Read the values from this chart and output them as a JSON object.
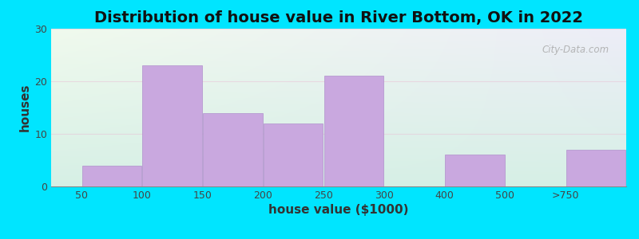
{
  "title": "Distribution of house value in River Bottom, OK in 2022",
  "xlabel": "house value ($1000)",
  "ylabel": "houses",
  "categories": [
    "50",
    "100",
    "150",
    "200",
    "250",
    "300",
    "400",
    "500",
    ">750"
  ],
  "values": [
    4,
    23,
    14,
    12,
    21,
    0,
    6,
    0,
    7
  ],
  "bar_color": "#c9a8df",
  "bar_edgecolor": "#b090cc",
  "ylim": [
    0,
    30
  ],
  "yticks": [
    0,
    10,
    20,
    30
  ],
  "bg_top_left": "#e8f5e0",
  "bg_top_right": "#ddeee8",
  "bg_bottom_left": "#d8eedd",
  "bg_bottom_right": "#cce8e8",
  "background_outer": "#00e5ff",
  "title_fontsize": 14,
  "axis_label_fontsize": 11,
  "tick_fontsize": 9,
  "watermark": "City-Data.com",
  "grid_color": "#e8c8d8",
  "grid_alpha": 0.6
}
